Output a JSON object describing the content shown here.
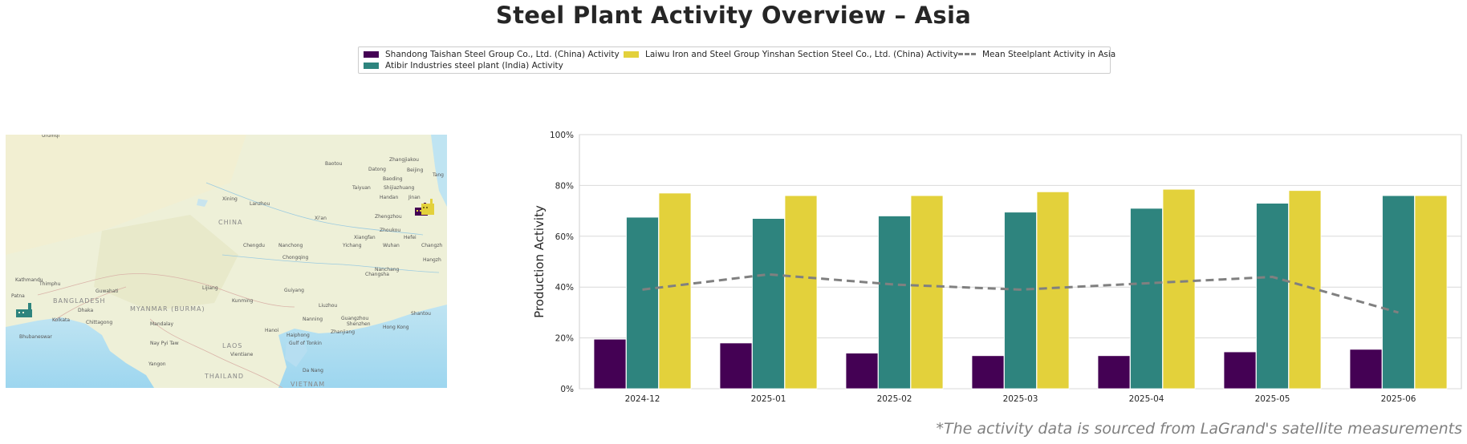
{
  "title": "Steel Plant Activity Overview – Asia",
  "legend": {
    "items": [
      {
        "label": "Shandong Taishan Steel Group Co., Ltd. (China) Activity",
        "color": "#440154",
        "kind": "bar"
      },
      {
        "label": "Laiwu Iron and Steel Group Yinshan Section Steel Co., Ltd. (China) Activity",
        "color": "#e3d13b",
        "kind": "bar"
      },
      {
        "label": "Mean Steelplant Activity in Asia",
        "color": "#808080",
        "kind": "line"
      },
      {
        "label": "Atibir Industries steel plant (India) Activity",
        "color": "#2e847e",
        "kind": "bar"
      }
    ]
  },
  "map": {
    "labels": [
      "Urumqi",
      "Baotou",
      "Zhangjiakou",
      "Datong",
      "Beijing",
      "Tang",
      "Baoding",
      "Taiyuan",
      "Shijiazhuang",
      "Xining",
      "Lanzhou",
      "Handan",
      "Jinan",
      "Zhengzhou",
      "CHINA",
      "Xi'an",
      "Zhoukou",
      "Xiangfan",
      "Hefei",
      "Chengdu",
      "Nanchong",
      "Yichang",
      "Wuhan",
      "Chongqing",
      "Changzh",
      "Nanchang",
      "Hangzh",
      "Kathmandu",
      "Changsha",
      "Thimphu",
      "Guwahati",
      "Patna",
      "Lijiang",
      "Guiyang",
      "BANGLADESH",
      "Kunming",
      "Dhaka",
      "MYANMAR (BURMA)",
      "Liuzhou",
      "Kolkata",
      "Chittagong",
      "Mandalay",
      "Guangzhou",
      "Shantou",
      "Nanning",
      "Shenzhen",
      "Hong Kong",
      "Bhubaneswar",
      "Hanoi",
      "Haiphong",
      "Zhanjiang",
      "Nay Pyi Taw",
      "LAOS",
      "Gulf of Tonkin",
      "Vientiane",
      "Yangon",
      "Da Nang",
      "THAILAND",
      "VIETNAM"
    ]
  },
  "chart_data": {
    "type": "bar",
    "categories": [
      "2024-12",
      "2025-01",
      "2025-02",
      "2025-03",
      "2025-04",
      "2025-05",
      "2025-06"
    ],
    "series": [
      {
        "name": "Shandong Taishan Steel Group Co., Ltd. (China) Activity",
        "type": "bar",
        "color": "#440154",
        "values": [
          19.5,
          18,
          14,
          13,
          13,
          14.5,
          15.5
        ]
      },
      {
        "name": "Atibir Industries steel plant (India) Activity",
        "type": "bar",
        "color": "#2e847e",
        "values": [
          67.5,
          67,
          68,
          69.5,
          71,
          73,
          76
        ]
      },
      {
        "name": "Laiwu Iron and Steel Group Yinshan Section Steel Co., Ltd. (China) Activity",
        "type": "bar",
        "color": "#e3d13b",
        "values": [
          77,
          76,
          76,
          77.5,
          78.5,
          78,
          76
        ]
      },
      {
        "name": "Mean Steelplant Activity in Asia",
        "type": "line",
        "style": "dashed",
        "color": "#808080",
        "values": [
          39,
          45,
          41,
          39,
          41.5,
          44,
          30
        ]
      }
    ],
    "xlabel": "",
    "ylabel": "Production Activity",
    "ylim": [
      0,
      100
    ],
    "yticks": [
      "0%",
      "20%",
      "40%",
      "60%",
      "80%",
      "100%"
    ],
    "grid": "horizontal",
    "legend_position": "top-center"
  },
  "footnote": "*The activity data is sourced from LaGrand's satellite measurements"
}
